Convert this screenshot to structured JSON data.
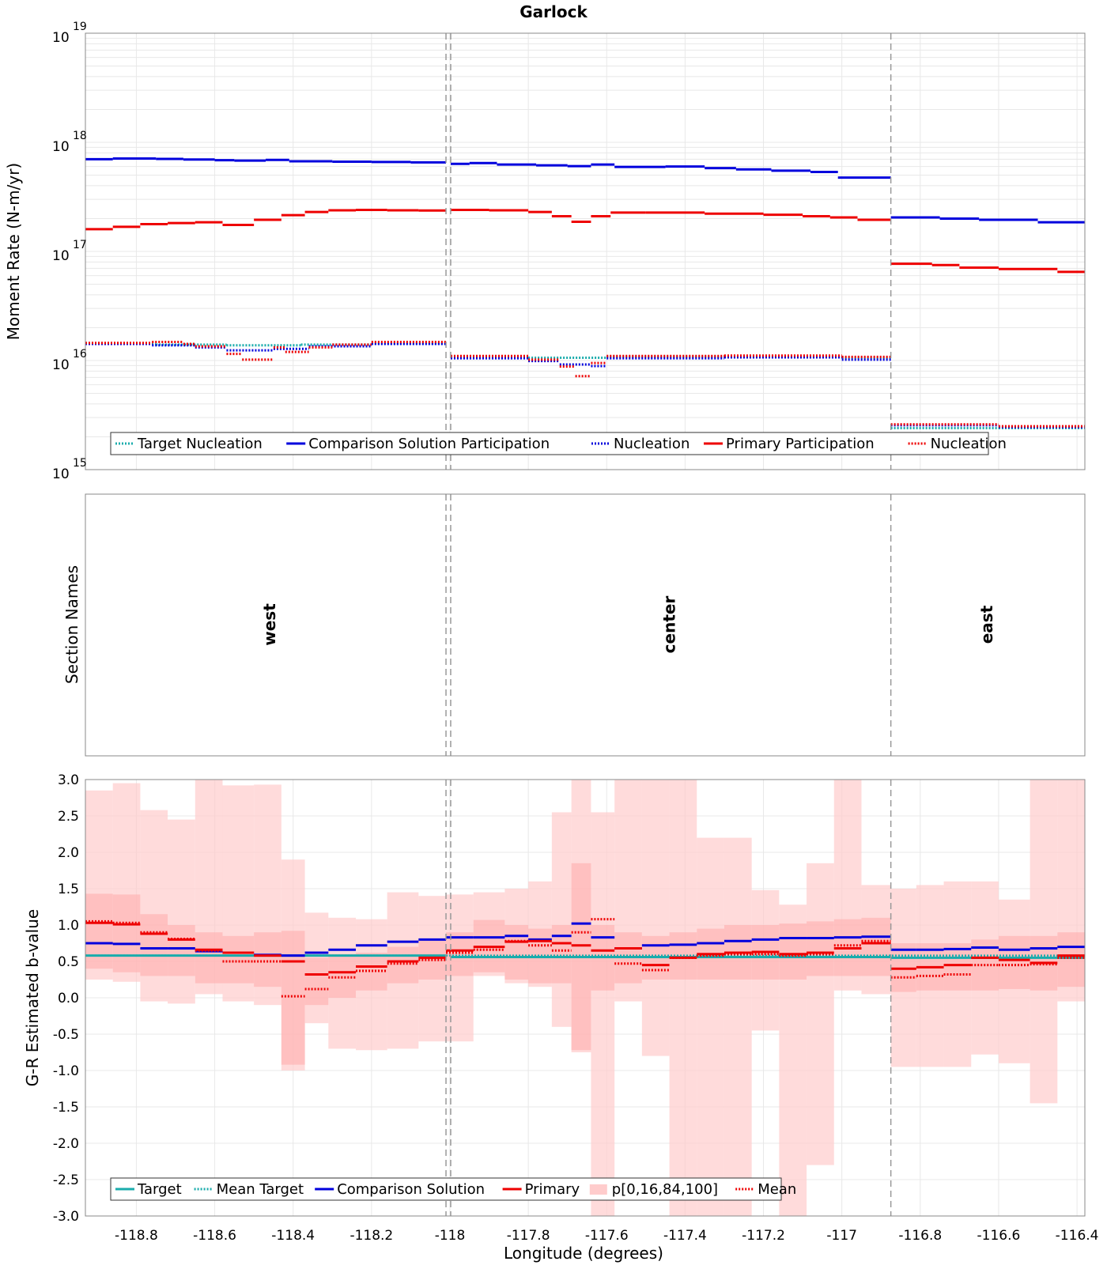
{
  "title": "Garlock",
  "xlabel": "Longitude (degrees)",
  "x_ticks": [
    -118.8,
    -118.6,
    -118.4,
    -118.2,
    -118,
    -117.8,
    -117.6,
    -117.4,
    -117.2,
    -117,
    -116.8,
    -116.6,
    -116.4
  ],
  "x_tick_labels": [
    "-118.8",
    "-118.6",
    "-118.4",
    "-118.2",
    "-118",
    "-117.8",
    "-117.6",
    "-117.4",
    "-117.2",
    "-117",
    "-116.8",
    "-116.6",
    "-116.4"
  ],
  "xlim": [
    -118.93,
    -116.38
  ],
  "section_boundaries": [
    -118.01,
    -117.998,
    -116.875
  ],
  "colors": {
    "target": "#1aacac",
    "comparison": "#0000dd",
    "primary": "#ee0000",
    "band": "#ffcccc",
    "band_inner": "#ffaaaa",
    "grid": "#e8e8e8",
    "divider": "#999999"
  },
  "chart_data": [
    {
      "type": "line",
      "title": "Garlock",
      "ylabel": "Moment Rate (N-m/yr)",
      "yscale": "log",
      "ylim": [
        1000000000000000.0,
        1e+19
      ],
      "y_ticks": [
        1000000000000000.0,
        1e+16,
        1e+17,
        1e+18,
        1e+19
      ],
      "y_tick_labels": [
        {
          "base": "10",
          "exp": "15"
        },
        {
          "base": "10",
          "exp": "16"
        },
        {
          "base": "10",
          "exp": "17"
        },
        {
          "base": "10",
          "exp": "18"
        },
        {
          "base": "10",
          "exp": "19"
        }
      ],
      "legend": [
        "Target Nucleation",
        "Comparison Solution Participation",
        "Nucleation",
        "Primary Participation",
        "Nucleation"
      ],
      "legend_position": "bottom-left",
      "series": [
        {
          "name": "Target Nucleation",
          "style": "dotted",
          "color": "target",
          "steps": [
            [
              -118.93,
              -118.75,
              1.42e+16
            ],
            [
              -118.75,
              -118.57,
              1.4e+16
            ],
            [
              -118.57,
              -118.38,
              1.38e+16
            ],
            [
              -118.38,
              -118.2,
              1.4e+16
            ],
            [
              -118.2,
              -118.01,
              1.43e+16
            ],
            [
              -117.998,
              -117.8,
              1.08e+16
            ],
            [
              -117.8,
              -117.6,
              1.06e+16
            ],
            [
              -117.6,
              -117.3,
              1.08e+16
            ],
            [
              -117.3,
              -117.0,
              1.08e+16
            ],
            [
              -117.0,
              -116.875,
              1.06e+16
            ],
            [
              -116.875,
              -116.6,
              2400000000000000.0
            ],
            [
              -116.6,
              -116.38,
              2400000000000000.0
            ]
          ]
        },
        {
          "name": "Comparison Solution Participation",
          "style": "solid",
          "color": "comparison",
          "steps": [
            [
              -118.93,
              -118.86,
              7e+17
            ],
            [
              -118.86,
              -118.75,
              7.1e+17
            ],
            [
              -118.75,
              -118.68,
              7.05e+17
            ],
            [
              -118.68,
              -118.6,
              6.95e+17
            ],
            [
              -118.6,
              -118.55,
              6.85e+17
            ],
            [
              -118.55,
              -118.47,
              6.8e+17
            ],
            [
              -118.47,
              -118.41,
              6.9e+17
            ],
            [
              -118.41,
              -118.3,
              6.7e+17
            ],
            [
              -118.3,
              -118.2,
              6.65e+17
            ],
            [
              -118.2,
              -118.1,
              6.6e+17
            ],
            [
              -118.1,
              -118.01,
              6.55e+17
            ],
            [
              -117.998,
              -117.95,
              6.35e+17
            ],
            [
              -117.95,
              -117.88,
              6.45e+17
            ],
            [
              -117.88,
              -117.78,
              6.25e+17
            ],
            [
              -117.78,
              -117.7,
              6.15e+17
            ],
            [
              -117.7,
              -117.64,
              6.05e+17
            ],
            [
              -117.64,
              -117.58,
              6.25e+17
            ],
            [
              -117.58,
              -117.45,
              5.95e+17
            ],
            [
              -117.45,
              -117.35,
              6e+17
            ],
            [
              -117.35,
              -117.27,
              5.8e+17
            ],
            [
              -117.27,
              -117.18,
              5.65e+17
            ],
            [
              -117.18,
              -117.08,
              5.5e+17
            ],
            [
              -117.08,
              -117.01,
              5.35e+17
            ],
            [
              -117.01,
              -116.875,
              4.75e+17
            ],
            [
              -116.875,
              -116.75,
              2.05e+17
            ],
            [
              -116.75,
              -116.65,
              2e+17
            ],
            [
              -116.65,
              -116.5,
              1.95e+17
            ],
            [
              -116.5,
              -116.38,
              1.85e+17
            ]
          ]
        },
        {
          "name": "Nucleation",
          "style": "dotted",
          "color": "comparison",
          "steps": [
            [
              -118.93,
              -118.76,
              1.42e+16
            ],
            [
              -118.76,
              -118.65,
              1.38e+16
            ],
            [
              -118.65,
              -118.57,
              1.32e+16
            ],
            [
              -118.57,
              -118.45,
              1.24e+16
            ],
            [
              -118.45,
              -118.36,
              1.28e+16
            ],
            [
              -118.36,
              -118.2,
              1.35e+16
            ],
            [
              -118.2,
              -118.01,
              1.42e+16
            ],
            [
              -117.998,
              -117.8,
              1.05e+16
            ],
            [
              -117.8,
              -117.72,
              9900000000000000.0
            ],
            [
              -117.72,
              -117.64,
              9200000000000000.0
            ],
            [
              -117.64,
              -117.6,
              8900000000000000.0
            ],
            [
              -117.6,
              -117.3,
              1.05e+16
            ],
            [
              -117.3,
              -117.0,
              1.07e+16
            ],
            [
              -117.0,
              -116.875,
              1.02e+16
            ],
            [
              -116.875,
              -116.6,
              2550000000000000.0
            ],
            [
              -116.6,
              -116.38,
              2450000000000000.0
            ]
          ]
        },
        {
          "name": "Primary Participation",
          "style": "solid",
          "color": "primary",
          "steps": [
            [
              -118.93,
              -118.86,
              1.6e+17
            ],
            [
              -118.86,
              -118.79,
              1.68e+17
            ],
            [
              -118.79,
              -118.72,
              1.78e+17
            ],
            [
              -118.72,
              -118.65,
              1.82e+17
            ],
            [
              -118.65,
              -118.58,
              1.85e+17
            ],
            [
              -118.58,
              -118.5,
              1.75e+17
            ],
            [
              -118.5,
              -118.43,
              1.95e+17
            ],
            [
              -118.43,
              -118.37,
              2.15e+17
            ],
            [
              -118.37,
              -118.31,
              2.3e+17
            ],
            [
              -118.31,
              -118.24,
              2.38e+17
            ],
            [
              -118.24,
              -118.16,
              2.4e+17
            ],
            [
              -118.16,
              -118.08,
              2.38e+17
            ],
            [
              -118.08,
              -118.01,
              2.37e+17
            ],
            [
              -117.998,
              -117.9,
              2.4e+17
            ],
            [
              -117.9,
              -117.8,
              2.38e+17
            ],
            [
              -117.8,
              -117.74,
              2.3e+17
            ],
            [
              -117.74,
              -117.69,
              2.1e+17
            ],
            [
              -117.69,
              -117.64,
              1.87e+17
            ],
            [
              -117.64,
              -117.59,
              2.1e+17
            ],
            [
              -117.59,
              -117.5,
              2.27e+17
            ],
            [
              -117.5,
              -117.35,
              2.27e+17
            ],
            [
              -117.35,
              -117.2,
              2.22e+17
            ],
            [
              -117.2,
              -117.1,
              2.17e+17
            ],
            [
              -117.1,
              -117.03,
              2.1e+17
            ],
            [
              -117.03,
              -116.96,
              2.05e+17
            ],
            [
              -116.96,
              -116.875,
              1.95e+17
            ],
            [
              -116.875,
              -116.77,
              7.7e+16
            ],
            [
              -116.77,
              -116.7,
              7.5e+16
            ],
            [
              -116.7,
              -116.6,
              7.1e+16
            ],
            [
              -116.6,
              -116.45,
              6.9e+16
            ],
            [
              -116.45,
              -116.38,
              6.5e+16
            ]
          ]
        },
        {
          "name": "Nucleation",
          "style": "dotted",
          "color": "primary",
          "steps": [
            [
              -118.93,
              -118.76,
              1.45e+16
            ],
            [
              -118.76,
              -118.68,
              1.48e+16
            ],
            [
              -118.68,
              -118.65,
              1.42e+16
            ],
            [
              -118.65,
              -118.57,
              1.35e+16
            ],
            [
              -118.57,
              -118.53,
              1.15e+16
            ],
            [
              -118.53,
              -118.45,
              1.02e+16
            ],
            [
              -118.45,
              -118.42,
              1.32e+16
            ],
            [
              -118.42,
              -118.36,
              1.2e+16
            ],
            [
              -118.36,
              -118.3,
              1.32e+16
            ],
            [
              -118.3,
              -118.2,
              1.4e+16
            ],
            [
              -118.2,
              -118.01,
              1.48e+16
            ],
            [
              -117.998,
              -117.8,
              1.1e+16
            ],
            [
              -117.8,
              -117.72,
              1.02e+16
            ],
            [
              -117.72,
              -117.68,
              8800000000000000.0
            ],
            [
              -117.68,
              -117.64,
              7200000000000000.0
            ],
            [
              -117.64,
              -117.6,
              9500000000000000.0
            ],
            [
              -117.6,
              -117.3,
              1.1e+16
            ],
            [
              -117.3,
              -117.0,
              1.11e+16
            ],
            [
              -117.0,
              -116.875,
              1.08e+16
            ],
            [
              -116.875,
              -116.6,
              2600000000000000.0
            ],
            [
              -116.6,
              -116.38,
              2500000000000000.0
            ]
          ]
        }
      ]
    },
    {
      "type": "table",
      "ylabel": "Section Names",
      "sections": [
        {
          "name": "west",
          "x_center": -118.46
        },
        {
          "name": "center",
          "x_center": -117.44
        },
        {
          "name": "east",
          "x_center": -116.63
        }
      ]
    },
    {
      "type": "line",
      "ylabel": "G-R Estimated b-value",
      "ylim": [
        -3.0,
        3.0
      ],
      "y_ticks": [
        -3.0,
        -2.5,
        -2.0,
        -1.5,
        -1.0,
        -0.5,
        0.0,
        0.5,
        1.0,
        1.5,
        2.0,
        2.5,
        3.0
      ],
      "y_tick_labels": [
        "-3.0",
        "-2.5",
        "-2.0",
        "-1.5",
        "-1.0",
        "-0.5",
        "0.0",
        "0.5",
        "1.0",
        "1.5",
        "2.0",
        "2.5",
        "3.0"
      ],
      "legend": [
        "Target",
        "Mean Target",
        "Comparison Solution",
        "Primary",
        "p[0,16,84,100]",
        "Mean"
      ],
      "legend_position": "bottom-left",
      "bins": [
        -118.93,
        -118.86,
        -118.79,
        -118.72,
        -118.65,
        -118.58,
        -118.5,
        -118.43,
        -118.37,
        -118.31,
        -118.24,
        -118.16,
        -118.08,
        -118.01,
        -117.94,
        -117.86,
        -117.8,
        -117.74,
        -117.69,
        -117.64,
        -117.58,
        -117.51,
        -117.44,
        -117.37,
        -117.3,
        -117.23,
        -117.16,
        -117.09,
        -117.02,
        -116.95,
        -116.875,
        -116.81,
        -116.74,
        -116.67,
        -116.6,
        -116.52,
        -116.45,
        -116.38
      ],
      "p0": [
        0.25,
        0.22,
        -0.05,
        -0.08,
        0.05,
        -0.05,
        -0.1,
        -1.0,
        -0.35,
        -0.7,
        -0.72,
        -0.7,
        -0.6,
        -0.6,
        0.3,
        0.2,
        0.15,
        -0.4,
        -0.75,
        -3.0,
        -0.05,
        -0.8,
        -3.0,
        -3.0,
        -3.0,
        -0.45,
        -3.0,
        -2.3,
        0.1,
        0.05,
        -0.95,
        -0.95,
        -0.95,
        -0.78,
        -0.9,
        -1.45,
        -0.05
      ],
      "p16": [
        0.4,
        0.35,
        0.3,
        0.3,
        0.2,
        0.2,
        0.15,
        -0.92,
        -0.1,
        0.0,
        0.1,
        0.2,
        0.25,
        0.3,
        0.35,
        0.25,
        0.2,
        0.2,
        -0.72,
        0.1,
        0.2,
        0.25,
        0.25,
        0.25,
        0.25,
        0.25,
        0.25,
        0.3,
        0.3,
        0.3,
        0.08,
        0.1,
        0.1,
        0.1,
        0.12,
        0.1,
        0.15
      ],
      "p84": [
        1.43,
        1.42,
        1.15,
        1.0,
        0.9,
        0.85,
        0.9,
        0.92,
        0.55,
        0.6,
        0.62,
        0.7,
        0.8,
        0.9,
        1.07,
        1.0,
        0.95,
        1.0,
        1.85,
        1.0,
        0.9,
        0.85,
        0.9,
        0.95,
        1.0,
        1.0,
        1.02,
        1.05,
        1.08,
        1.1,
        0.75,
        0.75,
        0.75,
        0.8,
        0.85,
        0.85,
        0.9
      ],
      "p100": [
        2.85,
        2.95,
        2.58,
        2.45,
        3.0,
        2.92,
        2.93,
        1.9,
        1.17,
        1.1,
        1.08,
        1.45,
        1.4,
        1.42,
        1.45,
        1.5,
        1.6,
        2.55,
        3.0,
        2.55,
        3.0,
        3.0,
        3.0,
        2.2,
        2.2,
        1.48,
        1.28,
        1.85,
        3.0,
        1.55,
        1.5,
        1.55,
        1.6,
        1.6,
        1.35,
        3.0,
        3.0
      ],
      "primary": [
        1.03,
        1.01,
        0.88,
        0.8,
        0.66,
        0.62,
        0.58,
        0.5,
        0.32,
        0.35,
        0.43,
        0.5,
        0.55,
        0.65,
        0.7,
        0.77,
        0.78,
        0.75,
        0.72,
        0.65,
        0.68,
        0.45,
        0.55,
        0.6,
        0.62,
        0.63,
        0.6,
        0.62,
        0.68,
        0.75,
        0.4,
        0.42,
        0.45,
        0.55,
        0.52,
        0.48,
        0.58
      ],
      "mean": [
        1.05,
        1.03,
        0.9,
        0.81,
        0.65,
        0.5,
        0.5,
        0.02,
        0.12,
        0.28,
        0.37,
        0.47,
        0.52,
        0.62,
        0.66,
        0.78,
        0.72,
        0.65,
        0.9,
        1.08,
        0.47,
        0.38,
        0.55,
        0.58,
        0.6,
        0.6,
        0.58,
        0.6,
        0.72,
        0.78,
        0.28,
        0.3,
        0.32,
        0.45,
        0.45,
        0.46,
        0.55
      ],
      "comparison": [
        0.75,
        0.74,
        0.68,
        0.68,
        0.64,
        0.62,
        0.59,
        0.58,
        0.62,
        0.66,
        0.72,
        0.77,
        0.8,
        0.83,
        0.83,
        0.85,
        0.8,
        0.85,
        1.02,
        0.83,
        0.68,
        0.72,
        0.73,
        0.75,
        0.78,
        0.8,
        0.82,
        0.82,
        0.83,
        0.84,
        0.66,
        0.66,
        0.67,
        0.69,
        0.66,
        0.68,
        0.7
      ],
      "target_steps": [
        [
          -118.93,
          -118.01,
          0.58
        ],
        [
          -117.998,
          -116.875,
          0.56
        ],
        [
          -116.875,
          -116.38,
          0.55
        ]
      ],
      "mean_target": 0.58
    }
  ]
}
